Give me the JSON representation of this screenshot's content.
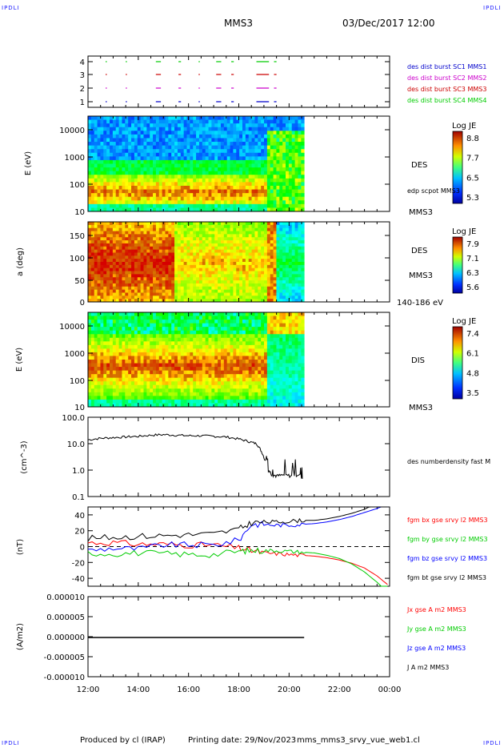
{
  "corner_tl": "IPDLI",
  "corner_tr": "IPDLI",
  "corner_bl": "IPDLI",
  "corner_br": "IPDLI",
  "header": {
    "spacecraft": "MMS3",
    "datetime": "03/Dec/2017 12:00"
  },
  "footer": {
    "producer": "Produced by cl (IRAP)",
    "printing": "Printing date: 29/Nov/2023",
    "script": "mms_mms3_srvy_vue_web1.cl"
  },
  "chart_data": [
    {
      "type": "scatter",
      "name": "burst availability",
      "yticks": [
        "4",
        "3",
        "2",
        "1"
      ],
      "legend": [
        {
          "label": "des dist burst SC1 MMS1",
          "color": "#0000cc"
        },
        {
          "label": "des dist burst SC2 MMS2",
          "color": "#cc00cc"
        },
        {
          "label": "des dist burst SC3 MMS3",
          "color": "#cc0000"
        },
        {
          "label": "des dist burst SC4 MMS4",
          "color": "#00cc00"
        }
      ],
      "intervals": [
        [
          12.7,
          12.75
        ],
        [
          13.5,
          13.55
        ],
        [
          14.7,
          14.9
        ],
        [
          15.6,
          15.7
        ],
        [
          16.4,
          16.45
        ],
        [
          17.1,
          17.3
        ],
        [
          17.7,
          17.8
        ],
        [
          18.7,
          19.2
        ],
        [
          19.4,
          19.5
        ]
      ]
    },
    {
      "type": "heatmap",
      "name": "DES energy spectrogram",
      "ylabel": "E (eV)",
      "yscale": "log",
      "ylim": [
        10,
        30000
      ],
      "yticks": [
        "10000",
        "1000",
        "100",
        "10"
      ],
      "colorbar": {
        "title": "Log JE",
        "ticks": [
          "8.8",
          "7.7",
          "6.5",
          "5.3"
        ]
      },
      "labels": [
        "DES",
        "edp scpot MMS3",
        "MMS3"
      ]
    },
    {
      "type": "heatmap",
      "name": "DES pitch angle",
      "ylabel": "a (deg)",
      "ylim": [
        0,
        180
      ],
      "yticks": [
        "150",
        "100",
        "50",
        "0"
      ],
      "colorbar": {
        "title": "Log JE",
        "ticks": [
          "7.9",
          "7.1",
          "6.3",
          "5.6"
        ]
      },
      "labels": [
        "DES",
        "MMS3",
        "140-186 eV"
      ]
    },
    {
      "type": "heatmap",
      "name": "DIS energy spectrogram",
      "ylabel": "E (eV)",
      "yscale": "log",
      "ylim": [
        10,
        30000
      ],
      "yticks": [
        "10000",
        "1000",
        "100",
        "10"
      ],
      "colorbar": {
        "title": "Log JE",
        "ticks": [
          "7.4",
          "6.1",
          "4.8",
          "3.5"
        ]
      },
      "labels": [
        "DIS",
        "MMS3"
      ]
    },
    {
      "type": "line",
      "name": "density",
      "ylabel": "(cm^-3)",
      "yscale": "log",
      "ylim": [
        0.1,
        100
      ],
      "yticks": [
        "100.0",
        "10.0",
        "1.0",
        "0.1"
      ],
      "series": [
        {
          "name": "des numberdensity fast M",
          "color": "#000000",
          "x": [
            12.0,
            12.5,
            13.0,
            13.5,
            14.0,
            14.5,
            15.0,
            15.5,
            16.0,
            16.5,
            17.0,
            17.5,
            18.0,
            18.4,
            18.7,
            18.9,
            19.1,
            19.3,
            19.5,
            19.8,
            20.1,
            20.4,
            20.55
          ],
          "y": [
            14,
            16,
            17,
            18,
            19,
            21,
            22,
            21,
            20,
            20,
            19,
            18,
            15,
            12,
            10,
            5,
            1.2,
            0.7,
            0.6,
            0.65,
            0.6,
            0.7,
            0.45
          ]
        }
      ]
    },
    {
      "type": "line",
      "name": "magnetic field",
      "ylabel": "(nT)",
      "ylim": [
        -50,
        50
      ],
      "yticks": [
        "40",
        "20",
        "0",
        "-20",
        "-40"
      ],
      "x": [
        12,
        13,
        14,
        15,
        16,
        17,
        18,
        18.5,
        19,
        19.5,
        20,
        20.5,
        21,
        21.5,
        22,
        22.5,
        23,
        23.5,
        24
      ],
      "series": [
        {
          "name": "fgm bx gse srvy l2 MMS3",
          "color": "#ff0000",
          "values": [
            5,
            5,
            3,
            3,
            2,
            2,
            -2,
            -5,
            -8,
            -9,
            -10,
            -11,
            -12,
            -14,
            -17,
            -21,
            -27,
            -37,
            -50
          ]
        },
        {
          "name": "fgm by gse srvy l2 MMS3",
          "color": "#00cc00",
          "values": [
            -8,
            -9,
            -8,
            -9,
            -10,
            -10,
            -6,
            -5,
            -5,
            -5,
            -6,
            -7,
            -8,
            -11,
            -15,
            -22,
            -32,
            -45,
            -60
          ]
        },
        {
          "name": "fgm bz gse srvy l2 MMS3",
          "color": "#0000ff",
          "values": [
            -5,
            -2,
            -3,
            2,
            2,
            2,
            8,
            28,
            28,
            27,
            27,
            28,
            29,
            31,
            34,
            38,
            43,
            48,
            55
          ]
        },
        {
          "name": "fgm bt gse srvy l2 MMS3",
          "color": "#000000",
          "values": [
            10,
            12,
            13,
            14,
            15,
            16,
            22,
            30,
            31,
            31,
            32,
            33,
            33,
            35,
            38,
            42,
            47,
            55,
            60
          ]
        }
      ]
    },
    {
      "type": "line",
      "name": "current density",
      "ylabel": "(A/m2)",
      "ylim": [
        -0.0001,
        0.0001
      ],
      "yticks": [
        "0.000010",
        "0.000005",
        "0.000000",
        "-0.000005",
        "-0.000010"
      ],
      "series": [
        {
          "name": "Jx gse A m2 MMS3",
          "color": "#ff0000",
          "values": [
            0
          ]
        },
        {
          "name": "Jy gse A m2 MMS3",
          "color": "#00cc00",
          "values": [
            0
          ]
        },
        {
          "name": "Jz gse A m2 MMS3",
          "color": "#0000ff",
          "values": [
            0
          ]
        },
        {
          "name": "J A m2 MMS3",
          "color": "#000000",
          "values": [
            0
          ]
        }
      ]
    }
  ],
  "xaxis": {
    "ticks": [
      "12:00",
      "14:00",
      "16:00",
      "18:00",
      "20:00",
      "22:00",
      "00:00"
    ],
    "xlim": [
      12,
      24
    ],
    "data_end": 20.6
  }
}
